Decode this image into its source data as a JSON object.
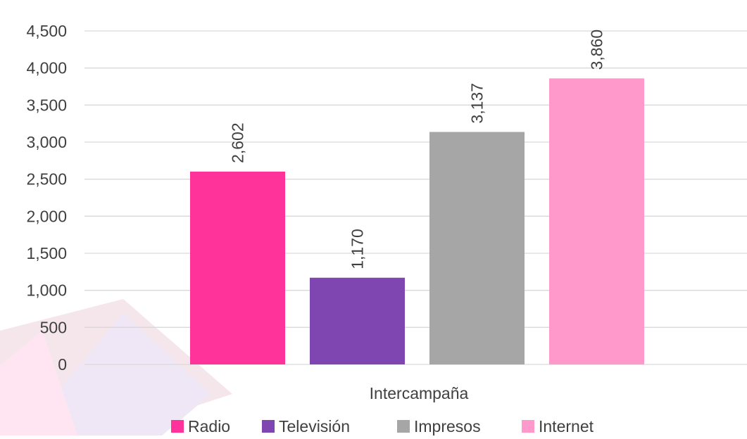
{
  "chart_data": {
    "type": "bar",
    "categories": [
      "Intercampaña"
    ],
    "series": [
      {
        "name": "Radio",
        "values": [
          2602
        ],
        "label": "2,602",
        "color": "#ff3399"
      },
      {
        "name": "Televisión",
        "values": [
          1170
        ],
        "label": "1,170",
        "color": "#7f45b0"
      },
      {
        "name": "Impresos",
        "values": [
          3137
        ],
        "label": "3,137",
        "color": "#a6a6a6"
      },
      {
        "name": "Internet",
        "values": [
          3860
        ],
        "label": "3,860",
        "color": "#ff99cc"
      }
    ],
    "ylim": [
      0,
      4500
    ],
    "yticks": [
      0,
      500,
      1000,
      1500,
      2000,
      2500,
      3000,
      3500,
      4000,
      4500
    ],
    "ytick_labels": [
      "0",
      "500",
      "1,000",
      "1,500",
      "2,000",
      "2,500",
      "3,000",
      "3,500",
      "4,000",
      "4,500"
    ],
    "xlabel": "Intercampaña",
    "grid": true,
    "legend_position": "bottom",
    "title": ""
  }
}
